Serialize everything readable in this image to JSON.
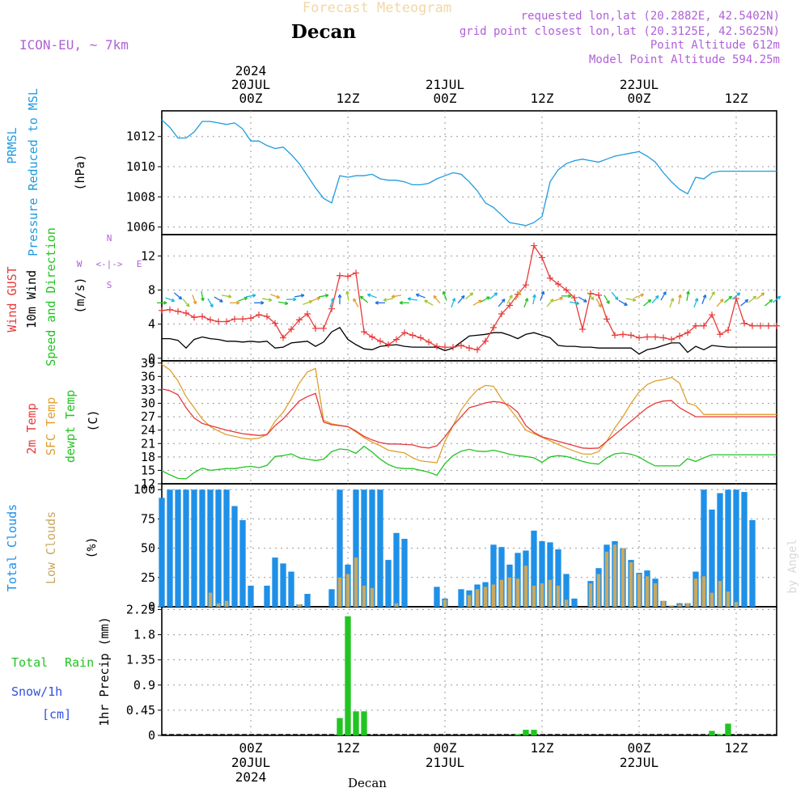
{
  "header": {
    "title": "Forecast Meteogram",
    "location": "Decan",
    "model": "ICON-EU, ~ 7km",
    "requested": "requested lon,lat (20.2882E, 42.5402N)",
    "gridpoint": "grid point closest lon,lat (20.3125E, 42.5625N)",
    "altitude": "Point Altitude 612m",
    "model_altitude": "Model Point Altitude 594.25m",
    "credit": "by Angel",
    "footer": "Decan"
  },
  "colors": {
    "pressure": "#1e9be0",
    "gust": "#e83a3a",
    "wind": "#000000",
    "temp2m": "#e83a3a",
    "sfc": "#e0a030",
    "dewpt": "#22c422",
    "total_cloud": "#1e90e8",
    "low_cloud": "#c8a860",
    "rain": "#22c422",
    "snow": "#3050e0",
    "purple": "#b060d8"
  },
  "time_axis": {
    "top_ticks": [
      {
        "hour": 12,
        "lines": [
          "2024",
          "20JUL",
          "00Z"
        ]
      },
      {
        "hour": 24,
        "lines": [
          "12Z"
        ]
      },
      {
        "hour": 36,
        "lines": [
          "21JUL",
          "00Z"
        ]
      },
      {
        "hour": 48,
        "lines": [
          "12Z"
        ]
      },
      {
        "hour": 60,
        "lines": [
          "22JUL",
          "00Z"
        ]
      },
      {
        "hour": 72,
        "lines": [
          "12Z"
        ]
      }
    ],
    "bottom_ticks": [
      {
        "hour": 12,
        "lines": [
          "00Z",
          "20JUL",
          "2024"
        ]
      },
      {
        "hour": 24,
        "lines": [
          "12Z"
        ]
      },
      {
        "hour": 36,
        "lines": [
          "00Z",
          "21JUL"
        ]
      },
      {
        "hour": 48,
        "lines": [
          "12Z"
        ]
      },
      {
        "hour": 60,
        "lines": [
          "00Z",
          "22JUL"
        ]
      },
      {
        "hour": 72,
        "lines": [
          "12Z"
        ]
      }
    ],
    "range": [
      1,
      77
    ]
  },
  "panels": {
    "pressure": {
      "labels": [
        "PRMSL",
        "Pressure Reduced to MSL"
      ],
      "unit": "(hPa)",
      "ylim": [
        1005.5,
        1013.7
      ],
      "ticks": [
        1006,
        1008,
        1010,
        1012
      ]
    },
    "wind": {
      "labels": [
        "Wind GUST",
        "10m Wind",
        "Speed and Direction"
      ],
      "unit": "(m/s)",
      "compass": {
        "n": "N",
        "s": "S",
        "w": "W",
        "e": "E",
        "arrows": "<-|->"
      },
      "ylim": [
        -0.3,
        14.5
      ],
      "ticks": [
        0,
        4,
        8,
        12
      ]
    },
    "temp": {
      "labels": [
        "2m Temp",
        "SFC Temp",
        "dewpt Temp"
      ],
      "unit": "(C)",
      "ylim": [
        12,
        39.5
      ],
      "ticks": [
        12,
        15,
        18,
        21,
        24,
        27,
        30,
        33,
        36,
        39
      ]
    },
    "clouds": {
      "labels": [
        "Total Clouds",
        "Low Clouds"
      ],
      "unit": "(%)",
      "ylim": [
        0,
        105
      ],
      "ticks": [
        0,
        25,
        50,
        75,
        100
      ]
    },
    "precip": {
      "labels": [
        "Total",
        "Rain",
        "Snow/1h",
        "[cm]"
      ],
      "unit": "1hr Precip (mm)",
      "ylim": [
        0,
        2.3
      ],
      "ticks": [
        0,
        0.45,
        0.9,
        1.35,
        1.8,
        2.25
      ],
      "tick_labels": [
        "0",
        "0.45",
        "0.9",
        "1.35",
        "1.8",
        "2.25"
      ]
    }
  },
  "chart_data": {
    "type": "line",
    "x_unit": "forecast hour (00Z 20JUL = 12)",
    "x": [
      1,
      2,
      3,
      4,
      5,
      6,
      7,
      8,
      9,
      10,
      11,
      12,
      13,
      14,
      15,
      16,
      17,
      18,
      19,
      20,
      21,
      22,
      23,
      24,
      25,
      26,
      27,
      28,
      29,
      30,
      31,
      32,
      33,
      34,
      35,
      36,
      37,
      38,
      39,
      40,
      41,
      42,
      43,
      44,
      45,
      46,
      47,
      48,
      49,
      50,
      51,
      52,
      53,
      54,
      55,
      56,
      57,
      58,
      59,
      60,
      61,
      62,
      63,
      64,
      65,
      66,
      67,
      68,
      69,
      70,
      71,
      72,
      73,
      74,
      75,
      76,
      77
    ],
    "pressure": [
      1013.1,
      1012.6,
      1011.9,
      1011.9,
      1012.3,
      1013.0,
      1013.0,
      1012.9,
      1012.8,
      1012.9,
      1012.5,
      1011.7,
      1011.7,
      1011.4,
      1011.2,
      1011.3,
      1010.8,
      1010.2,
      1009.4,
      1008.6,
      1007.9,
      1007.6,
      1009.4,
      1009.3,
      1009.4,
      1009.4,
      1009.5,
      1009.2,
      1009.1,
      1009.1,
      1009.0,
      1008.8,
      1008.8,
      1008.9,
      1009.2,
      1009.4,
      1009.6,
      1009.5,
      1009.0,
      1008.4,
      1007.6,
      1007.3,
      1006.8,
      1006.3,
      1006.2,
      1006.1,
      1006.3,
      1006.7,
      1009.0,
      1009.8,
      1010.2,
      1010.4,
      1010.5,
      1010.4,
      1010.3,
      1010.5,
      1010.7,
      1010.8,
      1010.9,
      1011.0,
      1010.7,
      1010.3,
      1009.6,
      1009.0,
      1008.5,
      1008.2,
      1009.3,
      1009.2,
      1009.6,
      1009.7,
      1009.7,
      1009.7,
      1009.7,
      1009.7,
      1009.7,
      1009.7,
      1009.7
    ],
    "wind_gust": [
      5.6,
      5.7,
      5.5,
      5.3,
      4.8,
      4.9,
      4.5,
      4.3,
      4.3,
      4.6,
      4.6,
      4.7,
      5.1,
      4.9,
      4.1,
      2.4,
      3.4,
      4.5,
      5.2,
      3.5,
      3.5,
      5.8,
      9.7,
      9.6,
      10.0,
      3.1,
      2.5,
      2.0,
      1.6,
      2.2,
      3.0,
      2.7,
      2.4,
      1.9,
      1.4,
      1.3,
      1.3,
      1.5,
      1.2,
      1.0,
      2.0,
      3.6,
      5.2,
      6.2,
      7.5,
      8.6,
      13.2,
      11.8,
      9.4,
      8.7,
      8.0,
      7.1,
      3.4,
      7.6,
      7.4,
      4.6,
      2.7,
      2.8,
      2.7,
      2.4,
      2.5,
      2.5,
      2.4,
      2.2,
      2.6,
      3.0,
      3.8,
      3.8,
      5.1,
      2.8,
      3.3,
      7.0,
      4.1,
      3.8,
      3.8,
      3.8,
      3.8
    ],
    "wind_speed": [
      2.3,
      2.3,
      2.1,
      1.2,
      2.2,
      2.5,
      2.3,
      2.2,
      2.0,
      2.0,
      1.9,
      2.0,
      1.9,
      2.0,
      1.2,
      1.3,
      1.8,
      1.9,
      2.0,
      1.4,
      1.9,
      3.1,
      3.6,
      2.2,
      1.6,
      1.1,
      1.0,
      1.4,
      1.5,
      1.6,
      1.4,
      1.3,
      1.3,
      1.3,
      1.3,
      0.9,
      1.2,
      1.9,
      2.6,
      2.7,
      2.8,
      3.0,
      3.0,
      2.7,
      2.3,
      2.8,
      3.0,
      2.7,
      2.4,
      1.5,
      1.4,
      1.4,
      1.3,
      1.3,
      1.2,
      1.2,
      1.2,
      1.2,
      1.2,
      0.5,
      1.0,
      1.2,
      1.5,
      1.8,
      1.8,
      0.7,
      1.4,
      1.0,
      1.5,
      1.4,
      1.3,
      1.3,
      1.3,
      1.3,
      1.3,
      1.3,
      1.3
    ],
    "temp_2m": [
      33.2,
      32.8,
      31.9,
      29.0,
      26.7,
      25.5,
      25.0,
      24.5,
      24.0,
      23.6,
      23.2,
      23.0,
      22.8,
      23.0,
      25.0,
      26.5,
      28.5,
      30.5,
      31.5,
      32.2,
      25.8,
      25.2,
      25.0,
      24.8,
      23.8,
      22.6,
      21.8,
      21.2,
      20.9,
      20.9,
      20.8,
      20.7,
      20.2,
      20.0,
      20.5,
      22.5,
      25.0,
      27.0,
      29.0,
      29.5,
      30.1,
      30.4,
      30.2,
      29.5,
      28.0,
      25.0,
      23.5,
      22.5,
      22.0,
      21.5,
      21.0,
      20.5,
      20.0,
      19.9,
      20.0,
      21.5,
      23.0,
      24.5,
      26.0,
      27.5,
      29.0,
      30.0,
      30.5,
      30.6,
      29.0,
      28.0,
      27.0,
      27.0,
      27.0,
      27.0,
      27.0,
      27.0,
      27.0,
      27.0,
      27.0,
      27.0,
      27.0
    ],
    "temp_sfc": [
      38.7,
      37.5,
      35.0,
      31.5,
      29.0,
      26.5,
      24.8,
      23.8,
      23.0,
      22.6,
      22.2,
      22.0,
      22.2,
      23.0,
      26.0,
      28.0,
      31.0,
      34.5,
      37.0,
      37.8,
      26.2,
      25.4,
      25.1,
      24.8,
      23.6,
      22.3,
      21.3,
      20.5,
      19.5,
      19.2,
      18.9,
      17.8,
      17.1,
      16.9,
      16.7,
      21.5,
      25.0,
      28.5,
      31.0,
      33.0,
      34.0,
      33.8,
      31.0,
      28.8,
      26.5,
      24.0,
      23.2,
      22.4,
      21.6,
      20.8,
      20.0,
      19.3,
      18.7,
      18.6,
      19.2,
      21.5,
      24.5,
      27.0,
      30.0,
      32.5,
      34.2,
      35.0,
      35.3,
      35.8,
      34.5,
      30.0,
      29.5,
      27.5,
      27.5,
      27.5,
      27.5,
      27.5,
      27.5,
      27.5,
      27.5,
      27.5,
      27.5
    ],
    "temp_dewpt": [
      14.9,
      14.0,
      13.2,
      13.1,
      14.5,
      15.5,
      15.0,
      15.2,
      15.4,
      15.4,
      15.7,
      15.9,
      15.6,
      16.1,
      18.1,
      18.3,
      18.7,
      17.8,
      17.5,
      17.2,
      17.5,
      19.2,
      19.8,
      19.6,
      18.8,
      20.4,
      19.1,
      17.5,
      16.3,
      15.6,
      15.4,
      15.4,
      15.0,
      14.6,
      13.9,
      16.5,
      18.3,
      19.3,
      19.7,
      19.3,
      19.2,
      19.5,
      19.1,
      18.6,
      18.3,
      18.1,
      17.8,
      16.8,
      18.0,
      18.3,
      18.1,
      17.6,
      17.0,
      16.6,
      16.4,
      17.8,
      18.7,
      18.9,
      18.6,
      18.0,
      16.9,
      16.0,
      16.0,
      16.0,
      16.0,
      17.6,
      17.0,
      17.8,
      18.5,
      18.5,
      18.5,
      18.5,
      18.5,
      18.5,
      18.5,
      18.5,
      18.5
    ],
    "total_cloud": [
      93,
      100,
      100,
      100,
      100,
      100,
      100,
      100,
      100,
      86,
      74,
      18,
      0,
      18,
      42,
      37,
      30,
      2,
      11,
      0,
      0,
      15,
      100,
      36,
      100,
      100,
      100,
      100,
      40,
      63,
      58,
      0,
      0,
      0,
      17,
      7,
      0,
      15,
      14,
      19,
      21,
      53,
      51,
      36,
      46,
      48,
      65,
      56,
      55,
      49,
      28,
      7,
      0,
      22,
      33,
      53,
      56,
      50,
      40,
      29,
      31,
      24,
      5,
      1,
      3,
      3,
      30,
      100,
      83,
      97,
      100,
      100,
      98,
      74,
      0,
      0,
      0
    ],
    "low_cloud": [
      0,
      0,
      0,
      0,
      0,
      0,
      12,
      3,
      5,
      0,
      0,
      0,
      0,
      0,
      0,
      0,
      0,
      2,
      0,
      0,
      0,
      0,
      25,
      28,
      42,
      18,
      16,
      0,
      0,
      3,
      0,
      0,
      0,
      0,
      0,
      6,
      0,
      0,
      10,
      15,
      17,
      19,
      23,
      25,
      24,
      35,
      18,
      20,
      23,
      18,
      6,
      0,
      0,
      20,
      28,
      47,
      53,
      50,
      38,
      28,
      26,
      20,
      5,
      1,
      2,
      3,
      24,
      26,
      12,
      22,
      13,
      4,
      0,
      0,
      0,
      0,
      0
    ],
    "rain": [
      0,
      0,
      0,
      0,
      0,
      0,
      0,
      0,
      0,
      0,
      0,
      0,
      0,
      0,
      0,
      0,
      0,
      0,
      0,
      0,
      0,
      0,
      0.31,
      2.13,
      0.43,
      0.43,
      0,
      0,
      0,
      0,
      0,
      0,
      0,
      0,
      0,
      0,
      0,
      0,
      0,
      0,
      0,
      0,
      0,
      0,
      0.02,
      0.1,
      0.1,
      0,
      0,
      0,
      0,
      0,
      0,
      0,
      0,
      0,
      0,
      0,
      0,
      0,
      0,
      0,
      0,
      0,
      0,
      0,
      0,
      0,
      0.08,
      0.02,
      0.21,
      0,
      0,
      0,
      0,
      0,
      0
    ],
    "snow": [
      0,
      0,
      0,
      0,
      0,
      0,
      0,
      0,
      0,
      0,
      0,
      0,
      0,
      0,
      0,
      0,
      0,
      0,
      0,
      0,
      0,
      0,
      0,
      0,
      0,
      0,
      0,
      0,
      0,
      0,
      0,
      0,
      0,
      0,
      0,
      0,
      0,
      0,
      0,
      0,
      0,
      0,
      0,
      0,
      0,
      0,
      0,
      0,
      0,
      0,
      0,
      0,
      0,
      0,
      0,
      0,
      0,
      0,
      0,
      0,
      0,
      0,
      0,
      0,
      0,
      0,
      0,
      0,
      0,
      0,
      0,
      0,
      0,
      0,
      0,
      0,
      0
    ],
    "wind_dir_from": [
      270,
      290,
      310,
      320,
      340,
      350,
      330,
      300,
      280,
      270,
      250,
      260,
      270,
      280,
      290,
      280,
      270,
      260,
      250,
      250,
      260,
      200,
      180,
      170,
      150,
      130,
      110,
      90,
      80,
      80,
      90,
      100,
      110,
      120,
      140,
      160,
      200,
      220,
      230,
      240,
      240,
      230,
      220,
      210,
      210,
      200,
      190,
      200,
      220,
      250,
      270,
      280,
      300,
      320,
      330,
      330,
      320,
      300,
      280,
      250,
      230,
      220,
      210,
      200,
      190,
      190,
      200,
      200,
      210,
      220,
      230,
      230,
      230,
      230,
      230,
      230,
      230
    ]
  }
}
